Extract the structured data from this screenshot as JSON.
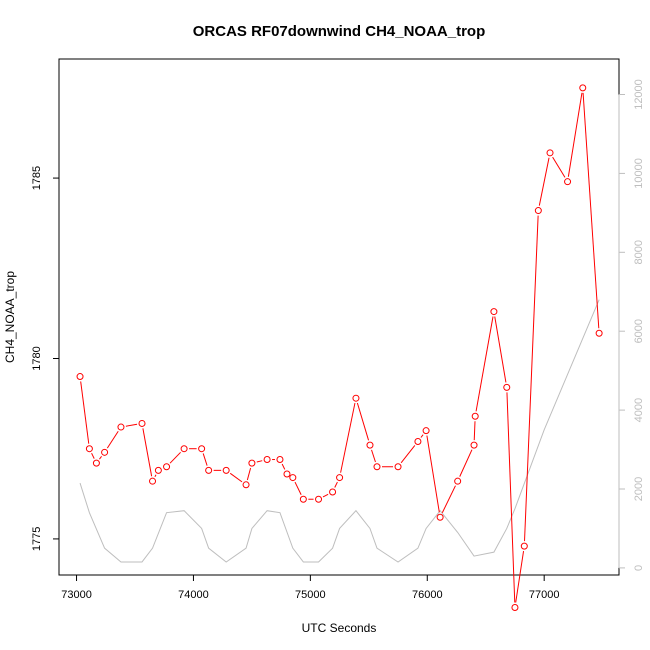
{
  "chart_data": {
    "type": "line",
    "title": "ORCAS RF07downwind CH4_NOAA_trop",
    "xlabel": "UTC Seconds",
    "ylabel": "CH4_NOAA_trop",
    "xlim": [
      72850,
      77640
    ],
    "ylim": [
      1774.0,
      1788.3
    ],
    "y2lim": [
      -180,
      12900
    ],
    "x_ticks": [
      73000,
      74000,
      75000,
      76000,
      77000
    ],
    "x_tick_labels": [
      "73000",
      "74000",
      "75000",
      "76000",
      "77000"
    ],
    "y_ticks": [
      1775,
      1780,
      1785
    ],
    "y_tick_labels": [
      "1775",
      "1780",
      "1785"
    ],
    "y2_ticks": [
      0,
      2000,
      4000,
      6000,
      8000,
      10000,
      12000
    ],
    "y2_tick_labels": [
      "0",
      "2000",
      "4000",
      "6000",
      "8000",
      "10000",
      "12000"
    ],
    "grid": false,
    "series": [
      {
        "color": "#ff0000",
        "marker": "open-circle",
        "axis": "left",
        "x": [
          73030,
          73110,
          73170,
          73240,
          73380,
          73560,
          73650,
          73700,
          73770,
          73920,
          74070,
          74130,
          74280,
          74450,
          74500,
          74630,
          74740,
          74800,
          74850,
          74940,
          75070,
          75190,
          75250,
          75390,
          75510,
          75570,
          75750,
          75920,
          75990,
          76110,
          76260,
          76400,
          76410,
          76570,
          76680,
          76750,
          76830,
          76950,
          77050,
          77200,
          77330,
          77470
        ],
        "y": [
          1779.5,
          1777.5,
          1777.1,
          1777.4,
          1778.1,
          1778.2,
          1776.6,
          1776.9,
          1777.0,
          1777.5,
          1777.5,
          1776.9,
          1776.9,
          1776.5,
          1777.1,
          1777.2,
          1777.2,
          1776.8,
          1776.7,
          1776.1,
          1776.1,
          1776.3,
          1776.7,
          1778.9,
          1777.6,
          1777.0,
          1777.0,
          1777.7,
          1778.0,
          1775.6,
          1776.6,
          1777.6,
          1778.4,
          1781.3,
          1779.2,
          1773.1,
          1774.8,
          1784.1,
          1785.7,
          1784.9,
          1787.5,
          1780.7
        ]
      },
      {
        "color": "#bebebe",
        "marker": "none",
        "axis": "right",
        "x": [
          73030,
          73110,
          73240,
          73380,
          73560,
          73650,
          73770,
          73920,
          74070,
          74130,
          74280,
          74450,
          74500,
          74630,
          74740,
          74850,
          74940,
          75070,
          75190,
          75250,
          75390,
          75510,
          75570,
          75750,
          75920,
          75990,
          76110,
          76260,
          76400,
          76570,
          76680,
          76750,
          77000,
          77470
        ],
        "y": [
          2150,
          1400,
          500,
          150,
          150,
          500,
          1400,
          1450,
          1000,
          500,
          150,
          500,
          1000,
          1450,
          1400,
          500,
          150,
          150,
          500,
          1000,
          1450,
          1000,
          500,
          150,
          500,
          1000,
          1450,
          900,
          300,
          400,
          1000,
          1500,
          3500,
          6800
        ]
      }
    ]
  }
}
